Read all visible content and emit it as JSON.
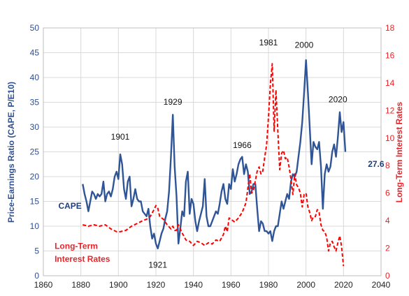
{
  "chart_data": {
    "type": "line",
    "xlabel": "",
    "ylabel_left": "Price-Earnings Ratio (CAPE, P/E10)",
    "ylabel_right": "Long-Term Interest Rates",
    "xlim": [
      1860,
      2040
    ],
    "ylim_left": [
      0,
      50
    ],
    "ylim_right": [
      0,
      18
    ],
    "x_ticks": [
      1860,
      1880,
      1900,
      1920,
      1940,
      1960,
      1980,
      2000,
      2020,
      2040
    ],
    "y_ticks_left": [
      0,
      5,
      10,
      15,
      20,
      25,
      30,
      35,
      40,
      45,
      50
    ],
    "y_ticks_right": [
      0,
      2,
      4,
      6,
      8,
      10,
      12,
      14,
      16,
      18
    ],
    "grid": true,
    "colors": {
      "cape": "#2f5597",
      "rates": "#ff0000"
    },
    "series": [
      {
        "name": "CAPE",
        "axis": "left",
        "points": [
          [
            1881,
            18.5
          ],
          [
            1882,
            16.5
          ],
          [
            1883,
            15.0
          ],
          [
            1884,
            13.0
          ],
          [
            1885,
            15.0
          ],
          [
            1886,
            17.0
          ],
          [
            1887,
            16.5
          ],
          [
            1888,
            15.5
          ],
          [
            1889,
            16.5
          ],
          [
            1890,
            16.0
          ],
          [
            1891,
            16.5
          ],
          [
            1892,
            19.0
          ],
          [
            1893,
            15.0
          ],
          [
            1894,
            16.5
          ],
          [
            1895,
            17.0
          ],
          [
            1896,
            16.0
          ],
          [
            1897,
            17.5
          ],
          [
            1898,
            20.0
          ],
          [
            1899,
            21.0
          ],
          [
            1900,
            19.5
          ],
          [
            1901,
            24.5
          ],
          [
            1902,
            22.5
          ],
          [
            1903,
            17.5
          ],
          [
            1904,
            15.5
          ],
          [
            1905,
            19.0
          ],
          [
            1906,
            20.0
          ],
          [
            1907,
            14.0
          ],
          [
            1908,
            15.5
          ],
          [
            1909,
            17.5
          ],
          [
            1910,
            15.5
          ],
          [
            1911,
            15.0
          ],
          [
            1912,
            15.0
          ],
          [
            1913,
            13.0
          ],
          [
            1914,
            12.5
          ],
          [
            1915,
            12.0
          ],
          [
            1916,
            13.5
          ],
          [
            1917,
            10.0
          ],
          [
            1918,
            7.5
          ],
          [
            1919,
            8.5
          ],
          [
            1920,
            6.5
          ],
          [
            1921,
            5.5
          ],
          [
            1922,
            7.0
          ],
          [
            1923,
            8.5
          ],
          [
            1924,
            9.5
          ],
          [
            1925,
            11.5
          ],
          [
            1926,
            13.0
          ],
          [
            1927,
            17.0
          ],
          [
            1928,
            24.0
          ],
          [
            1929,
            32.5
          ],
          [
            1930,
            22.0
          ],
          [
            1931,
            16.0
          ],
          [
            1932,
            6.5
          ],
          [
            1933,
            9.5
          ],
          [
            1934,
            13.0
          ],
          [
            1935,
            12.0
          ],
          [
            1936,
            19.0
          ],
          [
            1937,
            21.0
          ],
          [
            1938,
            12.5
          ],
          [
            1939,
            15.5
          ],
          [
            1940,
            14.5
          ],
          [
            1941,
            11.0
          ],
          [
            1942,
            9.0
          ],
          [
            1943,
            11.0
          ],
          [
            1944,
            12.5
          ],
          [
            1945,
            14.0
          ],
          [
            1946,
            19.5
          ],
          [
            1947,
            12.0
          ],
          [
            1948,
            10.0
          ],
          [
            1949,
            10.0
          ],
          [
            1950,
            11.0
          ],
          [
            1951,
            12.0
          ],
          [
            1952,
            13.0
          ],
          [
            1953,
            12.5
          ],
          [
            1954,
            14.5
          ],
          [
            1955,
            17.0
          ],
          [
            1956,
            18.5
          ],
          [
            1957,
            15.5
          ],
          [
            1958,
            14.5
          ],
          [
            1959,
            18.5
          ],
          [
            1960,
            17.5
          ],
          [
            1961,
            21.5
          ],
          [
            1962,
            19.0
          ],
          [
            1963,
            20.5
          ],
          [
            1964,
            22.5
          ],
          [
            1965,
            23.5
          ],
          [
            1966,
            24.0
          ],
          [
            1967,
            20.5
          ],
          [
            1968,
            22.5
          ],
          [
            1969,
            21.0
          ],
          [
            1970,
            16.5
          ],
          [
            1971,
            17.0
          ],
          [
            1972,
            18.5
          ],
          [
            1973,
            18.5
          ],
          [
            1974,
            13.5
          ],
          [
            1975,
            9.0
          ],
          [
            1976,
            11.0
          ],
          [
            1977,
            10.5
          ],
          [
            1978,
            9.0
          ],
          [
            1979,
            9.0
          ],
          [
            1980,
            8.5
          ],
          [
            1981,
            9.0
          ],
          [
            1982,
            7.0
          ],
          [
            1983,
            9.0
          ],
          [
            1984,
            10.0
          ],
          [
            1985,
            10.0
          ],
          [
            1986,
            12.5
          ],
          [
            1987,
            15.0
          ],
          [
            1988,
            13.5
          ],
          [
            1989,
            15.0
          ],
          [
            1990,
            16.5
          ],
          [
            1991,
            15.5
          ],
          [
            1992,
            19.0
          ],
          [
            1993,
            20.5
          ],
          [
            1994,
            20.0
          ],
          [
            1995,
            21.0
          ],
          [
            1996,
            24.0
          ],
          [
            1997,
            27.0
          ],
          [
            1998,
            31.0
          ],
          [
            1999,
            37.0
          ],
          [
            2000,
            43.5
          ],
          [
            2001,
            37.0
          ],
          [
            2002,
            30.0
          ],
          [
            2003,
            22.5
          ],
          [
            2004,
            27.0
          ],
          [
            2005,
            26.0
          ],
          [
            2006,
            25.5
          ],
          [
            2007,
            27.0
          ],
          [
            2008,
            22.0
          ],
          [
            2009,
            13.5
          ],
          [
            2010,
            20.5
          ],
          [
            2011,
            22.5
          ],
          [
            2012,
            21.0
          ],
          [
            2013,
            22.0
          ],
          [
            2014,
            25.0
          ],
          [
            2015,
            26.5
          ],
          [
            2016,
            24.0
          ],
          [
            2017,
            28.0
          ],
          [
            2018,
            33.0
          ],
          [
            2019,
            29.0
          ],
          [
            2020,
            31.0
          ],
          [
            2021,
            25.0
          ]
        ]
      },
      {
        "name": "Long-Term Interest Rates",
        "axis": "right",
        "points": [
          [
            1881,
            3.7
          ],
          [
            1884,
            3.6
          ],
          [
            1887,
            3.7
          ],
          [
            1890,
            3.6
          ],
          [
            1893,
            3.7
          ],
          [
            1896,
            3.4
          ],
          [
            1899,
            3.2
          ],
          [
            1901,
            3.2
          ],
          [
            1904,
            3.3
          ],
          [
            1907,
            3.6
          ],
          [
            1910,
            3.8
          ],
          [
            1913,
            4.0
          ],
          [
            1915,
            4.1
          ],
          [
            1917,
            4.3
          ],
          [
            1919,
            4.8
          ],
          [
            1920,
            5.1
          ],
          [
            1921,
            4.9
          ],
          [
            1922,
            4.3
          ],
          [
            1924,
            4.1
          ],
          [
            1926,
            3.7
          ],
          [
            1928,
            3.4
          ],
          [
            1929,
            3.6
          ],
          [
            1930,
            3.3
          ],
          [
            1931,
            3.3
          ],
          [
            1932,
            3.7
          ],
          [
            1934,
            3.1
          ],
          [
            1936,
            2.6
          ],
          [
            1938,
            2.5
          ],
          [
            1940,
            2.2
          ],
          [
            1942,
            2.5
          ],
          [
            1944,
            2.4
          ],
          [
            1946,
            2.2
          ],
          [
            1948,
            2.4
          ],
          [
            1950,
            2.3
          ],
          [
            1952,
            2.6
          ],
          [
            1954,
            2.5
          ],
          [
            1956,
            3.0
          ],
          [
            1957,
            3.6
          ],
          [
            1958,
            3.2
          ],
          [
            1959,
            4.2
          ],
          [
            1960,
            4.1
          ],
          [
            1962,
            3.9
          ],
          [
            1964,
            4.2
          ],
          [
            1966,
            4.6
          ],
          [
            1968,
            5.3
          ],
          [
            1970,
            7.4
          ],
          [
            1971,
            6.0
          ],
          [
            1972,
            6.2
          ],
          [
            1974,
            7.6
          ],
          [
            1975,
            7.9
          ],
          [
            1976,
            7.4
          ],
          [
            1977,
            7.6
          ],
          [
            1978,
            8.6
          ],
          [
            1979,
            9.5
          ],
          [
            1980,
            11.5
          ],
          [
            1981,
            13.9
          ],
          [
            1982,
            15.4
          ],
          [
            1983,
            10.5
          ],
          [
            1984,
            13.5
          ],
          [
            1985,
            10.5
          ],
          [
            1986,
            7.7
          ],
          [
            1987,
            8.9
          ],
          [
            1988,
            9.1
          ],
          [
            1989,
            8.5
          ],
          [
            1990,
            8.6
          ],
          [
            1991,
            7.9
          ],
          [
            1992,
            7.0
          ],
          [
            1993,
            5.9
          ],
          [
            1994,
            7.4
          ],
          [
            1995,
            6.6
          ],
          [
            1996,
            6.4
          ],
          [
            1997,
            6.0
          ],
          [
            1998,
            5.0
          ],
          [
            1999,
            5.9
          ],
          [
            2000,
            6.0
          ],
          [
            2001,
            5.0
          ],
          [
            2002,
            4.6
          ],
          [
            2003,
            4.0
          ],
          [
            2004,
            4.3
          ],
          [
            2005,
            4.3
          ],
          [
            2006,
            4.8
          ],
          [
            2007,
            4.6
          ],
          [
            2008,
            3.7
          ],
          [
            2009,
            3.3
          ],
          [
            2010,
            3.2
          ],
          [
            2011,
            2.8
          ],
          [
            2012,
            1.8
          ],
          [
            2013,
            2.4
          ],
          [
            2014,
            2.5
          ],
          [
            2015,
            2.1
          ],
          [
            2016,
            1.8
          ],
          [
            2017,
            2.4
          ],
          [
            2018,
            2.9
          ],
          [
            2019,
            2.1
          ],
          [
            2020,
            0.7
          ]
        ]
      }
    ],
    "annotations": [
      {
        "text": "1901",
        "x": 1901,
        "y": 27.5,
        "axis": "left"
      },
      {
        "text": "1929",
        "x": 1929,
        "y": 34.5,
        "axis": "left"
      },
      {
        "text": "1921",
        "x": 1921,
        "y": 1.6,
        "axis": "left"
      },
      {
        "text": "1966",
        "x": 1966,
        "y": 25.8,
        "axis": "left"
      },
      {
        "text": "1981",
        "x": 1980,
        "y": 46.5,
        "axis": "left"
      },
      {
        "text": "2000",
        "x": 1999,
        "y": 46.0,
        "axis": "left"
      },
      {
        "text": "2020",
        "x": 2017,
        "y": 35.0,
        "axis": "left"
      },
      {
        "text": "27.6",
        "x": 2033,
        "y": 22.0,
        "axis": "left",
        "style": "blue"
      },
      {
        "text": "CAPE",
        "x": 1868,
        "y": 13.5,
        "axis": "left",
        "style": "blue"
      },
      {
        "text": "Long-Term",
        "x": 1866,
        "y": 5.4,
        "axis": "left",
        "style": "red"
      },
      {
        "text": "Interest Rates",
        "x": 1866,
        "y": 2.8,
        "axis": "left",
        "style": "red"
      }
    ]
  }
}
